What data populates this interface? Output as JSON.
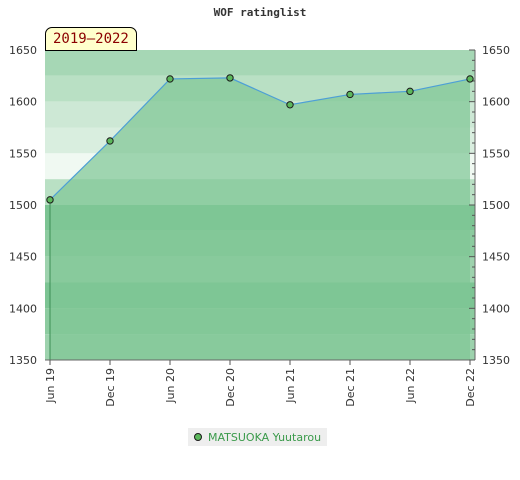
{
  "chart_data": {
    "type": "area",
    "title": "WOF ratinglist",
    "badge": "2019–2022",
    "x": [
      "Jun 19",
      "Dec 19",
      "Jun 20",
      "Dec 20",
      "Jun 21",
      "Dec 21",
      "Jun 22",
      "Dec 22"
    ],
    "series": [
      {
        "name": "MATSUOKA Yuutarou",
        "values": [
          1505,
          1562,
          1622,
          1623,
          1597,
          1607,
          1610,
          1622
        ]
      }
    ],
    "ylim": [
      1350,
      1650
    ],
    "yticks": [
      1350,
      1400,
      1450,
      1500,
      1550,
      1600,
      1650
    ],
    "grid": true,
    "legend_position": "bottom",
    "colors": {
      "area": "#7fc695",
      "line": "#4d9fd6",
      "marker": "#5cb85c",
      "band_dark": "#7cc493",
      "band_light": "#b9e0c4"
    }
  }
}
